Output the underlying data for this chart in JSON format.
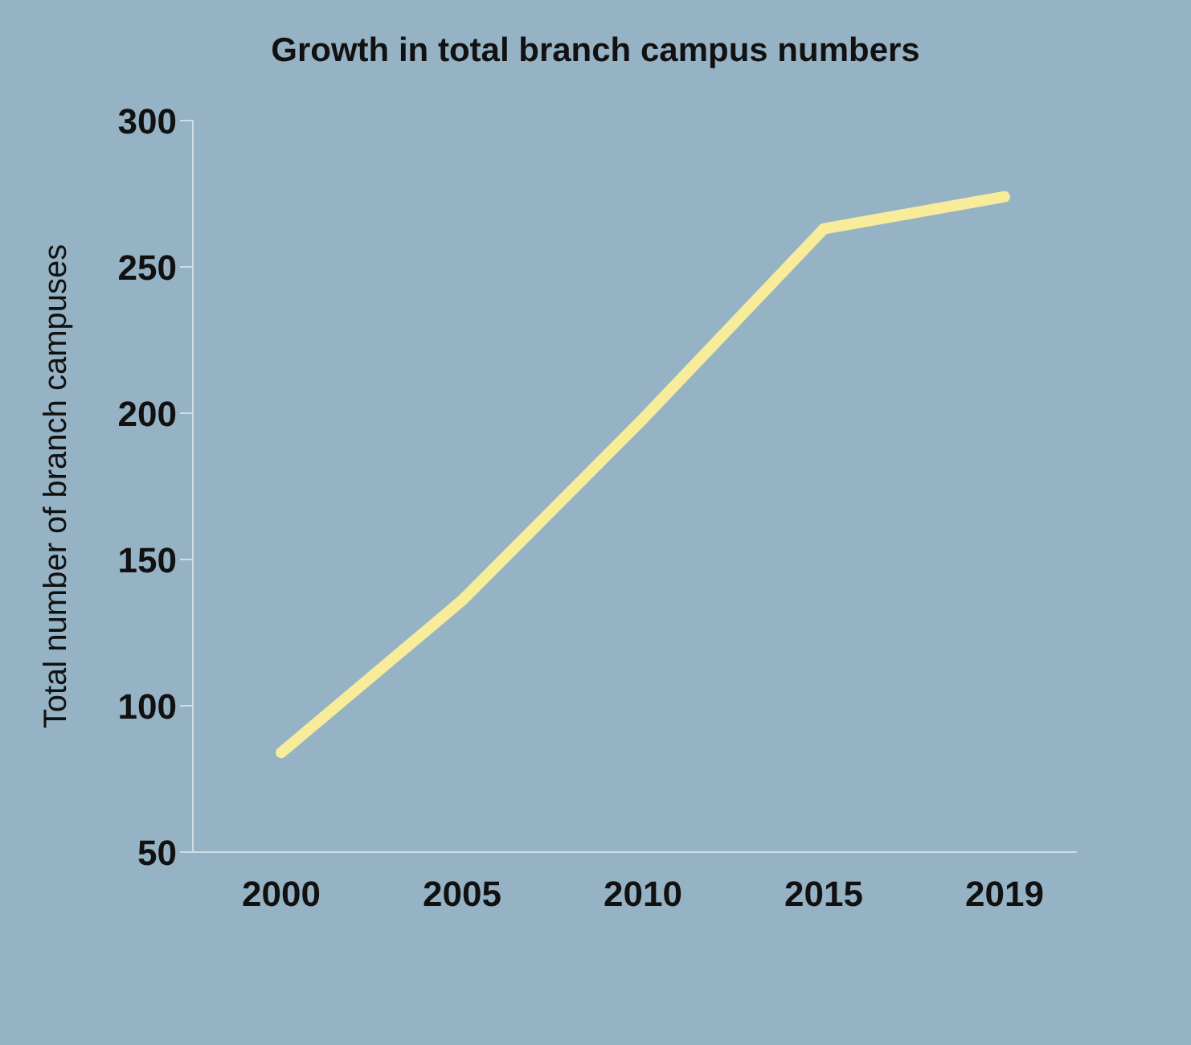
{
  "chart_data": {
    "type": "line",
    "title": "Growth in total branch campus numbers",
    "ylabel": "Total number of branch campuses",
    "categories": [
      "2000",
      "2005",
      "2010",
      "2015",
      "2019"
    ],
    "series": [
      {
        "color": "#f7ec9a",
        "values": [
          84,
          136,
          198,
          263,
          274
        ]
      }
    ],
    "ylim": [
      50,
      300
    ],
    "yticks": [
      50,
      100,
      150,
      200,
      250,
      300
    ],
    "grid": false,
    "legend": false,
    "marker": "none",
    "line_style": "solid"
  }
}
